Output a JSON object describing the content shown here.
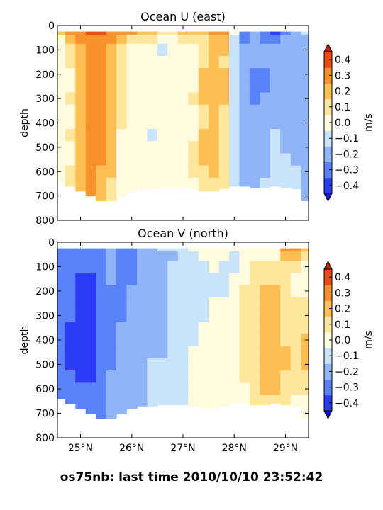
{
  "suptitle": "os75nb: last time 2010/10/10 23:52:42",
  "chart_data": [
    {
      "type": "heatmap",
      "title": "Ocean U (east)",
      "xlabel": "",
      "ylabel": "depth",
      "colorbar_label": "m/s",
      "ylim": [
        800,
        0
      ],
      "xlim": [
        24.55,
        29.45
      ],
      "yticks": [
        0,
        100,
        200,
        300,
        400,
        500,
        600,
        700,
        800
      ],
      "xticks": [
        25,
        26,
        27,
        28,
        29
      ],
      "xtick_labels": [],
      "colorbar_levels": [
        -0.4,
        -0.3,
        -0.2,
        -0.1,
        0.0,
        0.1,
        0.2,
        0.3,
        0.4
      ],
      "colorbar_tick_labels": [
        "−0.4",
        "−0.3",
        "−0.2",
        "−0.1",
        "0.0",
        "0.1",
        "0.2",
        "0.3",
        "0.4"
      ],
      "bin_colors": [
        "#2c3cf5",
        "#5a82f7",
        "#8fb4f8",
        "#c9e3fb",
        "#fefbde",
        "#fee69c",
        "#fdbf54",
        "#f8902c",
        "#ee4b14"
      ],
      "x": [
        24.6,
        24.8,
        25.0,
        25.2,
        25.4,
        25.6,
        25.8,
        26.0,
        26.2,
        26.4,
        26.6,
        26.8,
        27.0,
        27.2,
        27.4,
        27.6,
        27.8,
        28.0,
        28.2,
        28.4,
        28.6,
        28.8,
        29.0,
        29.2,
        29.4
      ],
      "depth_bins": [
        25,
        50,
        100,
        150,
        200,
        250,
        300,
        350,
        400,
        450,
        500,
        550,
        600,
        650,
        700
      ],
      "max_depth": [
        640,
        660,
        680,
        700,
        720,
        720,
        700,
        680,
        670,
        670,
        665,
        665,
        665,
        670,
        680,
        680,
        670,
        660,
        660,
        665,
        665,
        660,
        665,
        670,
        720
      ],
      "values": [
        [
          0.2,
          0.05,
          0.0,
          0.0,
          0.0,
          0.0,
          0.0,
          0.0,
          0.0,
          0.0,
          0.0,
          0.0,
          0.0,
          0.0,
          0.0
        ],
        [
          0.3,
          0.2,
          0.1,
          0.1,
          0.05,
          0.05,
          0.1,
          0.05,
          0.05,
          0.1,
          0.05,
          0.05,
          0.1,
          0.1,
          0.1
        ],
        [
          0.35,
          0.3,
          0.2,
          0.2,
          0.2,
          0.2,
          0.2,
          0.2,
          0.2,
          0.2,
          0.2,
          0.25,
          0.25,
          0.25,
          0.2
        ],
        [
          0.4,
          0.35,
          0.3,
          0.3,
          0.3,
          0.3,
          0.3,
          0.3,
          0.3,
          0.3,
          0.3,
          0.3,
          0.3,
          0.3,
          0.3
        ],
        [
          0.4,
          0.35,
          0.3,
          0.3,
          0.3,
          0.3,
          0.3,
          0.3,
          0.3,
          0.3,
          0.3,
          0.3,
          0.25,
          0.25,
          0.2
        ],
        [
          0.35,
          0.3,
          0.25,
          0.25,
          0.2,
          0.25,
          0.25,
          0.2,
          0.2,
          0.2,
          0.2,
          0.2,
          0.2,
          0.15,
          0.1
        ],
        [
          0.3,
          0.2,
          0.1,
          0.1,
          0.1,
          0.1,
          0.1,
          0.1,
          0.1,
          0.05,
          0.05,
          0.05,
          0.05,
          0.05,
          0.05
        ],
        [
          0.3,
          0.15,
          0.05,
          0.05,
          0.05,
          0.0,
          0.0,
          0.05,
          0.0,
          0.0,
          0.0,
          0.05,
          0.0,
          0.0,
          0.0
        ],
        [
          0.2,
          0.1,
          0.05,
          0.0,
          0.0,
          0.0,
          0.05,
          0.0,
          0.0,
          0.0,
          0.0,
          0.0,
          0.05,
          0.0,
          0.0
        ],
        [
          0.2,
          0.1,
          0.0,
          0.0,
          0.05,
          0.0,
          0.0,
          0.0,
          0.0,
          -0.05,
          0.0,
          0.0,
          0.0,
          0.0,
          0.0
        ],
        [
          0.1,
          0.05,
          -0.05,
          0.0,
          0.0,
          0.05,
          0.0,
          0.0,
          0.0,
          0.0,
          0.0,
          0.0,
          0.0,
          0.0,
          0.0
        ],
        [
          0.1,
          0.05,
          0.0,
          0.0,
          0.0,
          0.0,
          0.05,
          0.0,
          0.0,
          0.0,
          0.0,
          0.0,
          0.0,
          0.0,
          0.0
        ],
        [
          0.2,
          0.1,
          0.05,
          0.0,
          0.0,
          0.0,
          0.0,
          0.0,
          0.0,
          0.0,
          0.05,
          0.0,
          0.0,
          0.0,
          0.0
        ],
        [
          0.2,
          0.1,
          0.05,
          0.05,
          0.0,
          0.05,
          0.1,
          0.05,
          0.05,
          0.05,
          0.1,
          0.1,
          0.1,
          0.05,
          0.05
        ],
        [
          0.2,
          0.15,
          0.1,
          0.15,
          0.2,
          0.2,
          0.2,
          0.15,
          0.15,
          0.2,
          0.2,
          0.2,
          0.15,
          0.1,
          0.1
        ],
        [
          0.3,
          0.25,
          0.2,
          0.2,
          0.25,
          0.25,
          0.25,
          0.2,
          0.2,
          0.2,
          0.25,
          0.2,
          0.2,
          0.15,
          0.1
        ],
        [
          0.3,
          0.2,
          0.2,
          0.15,
          0.2,
          0.2,
          0.2,
          0.15,
          0.15,
          0.1,
          0.1,
          0.15,
          0.1,
          0.1,
          0.05
        ],
        [
          0.0,
          -0.05,
          -0.1,
          -0.1,
          -0.1,
          -0.1,
          -0.05,
          -0.05,
          -0.05,
          -0.05,
          -0.05,
          -0.05,
          -0.05,
          -0.05,
          -0.05
        ],
        [
          -0.3,
          -0.3,
          -0.2,
          -0.2,
          -0.2,
          -0.2,
          -0.2,
          -0.2,
          -0.2,
          -0.2,
          -0.15,
          -0.15,
          -0.15,
          -0.15,
          -0.15
        ],
        [
          -0.2,
          -0.2,
          -0.2,
          -0.2,
          -0.25,
          -0.25,
          -0.25,
          -0.2,
          -0.2,
          -0.2,
          -0.2,
          -0.2,
          -0.2,
          -0.15,
          -0.15
        ],
        [
          -0.3,
          -0.25,
          -0.2,
          -0.2,
          -0.25,
          -0.25,
          -0.2,
          -0.2,
          -0.2,
          -0.2,
          -0.15,
          -0.15,
          -0.15,
          -0.1,
          -0.1
        ],
        [
          -0.4,
          -0.3,
          -0.2,
          -0.2,
          -0.2,
          -0.15,
          -0.15,
          -0.15,
          -0.15,
          -0.1,
          -0.1,
          -0.1,
          -0.1,
          -0.1,
          -0.1
        ],
        [
          -0.3,
          -0.2,
          -0.15,
          -0.15,
          -0.15,
          -0.15,
          -0.15,
          -0.15,
          -0.15,
          -0.15,
          -0.15,
          -0.1,
          -0.1,
          -0.1,
          -0.1
        ],
        [
          -0.2,
          -0.2,
          -0.15,
          -0.15,
          -0.15,
          -0.15,
          -0.15,
          -0.15,
          -0.15,
          -0.15,
          -0.15,
          -0.15,
          -0.1,
          -0.1,
          -0.15
        ],
        [
          -0.1,
          -0.15,
          -0.15,
          -0.15,
          -0.15,
          -0.15,
          -0.15,
          -0.15,
          -0.15,
          -0.15,
          -0.15,
          -0.15,
          -0.15,
          -0.15,
          -0.15
        ]
      ]
    },
    {
      "type": "heatmap",
      "title": "Ocean V (north)",
      "xlabel": "",
      "ylabel": "depth",
      "colorbar_label": "m/s",
      "ylim": [
        800,
        0
      ],
      "xlim": [
        24.55,
        29.45
      ],
      "yticks": [
        0,
        100,
        200,
        300,
        400,
        500,
        600,
        700,
        800
      ],
      "xticks": [
        25,
        26,
        27,
        28,
        29
      ],
      "xtick_labels": [
        "25°N",
        "26°N",
        "27°N",
        "28°N",
        "29°N"
      ],
      "colorbar_levels": [
        -0.4,
        -0.3,
        -0.2,
        -0.1,
        0.0,
        0.1,
        0.2,
        0.3,
        0.4
      ],
      "colorbar_tick_labels": [
        "−0.4",
        "−0.3",
        "−0.2",
        "−0.1",
        "0.0",
        "0.1",
        "0.2",
        "0.3",
        "0.4"
      ],
      "bin_colors": [
        "#2c3cf5",
        "#5a82f7",
        "#8fb4f8",
        "#c9e3fb",
        "#fefbde",
        "#fee69c",
        "#fdbf54",
        "#f8902c",
        "#ee4b14"
      ],
      "x": [
        24.6,
        24.8,
        25.0,
        25.2,
        25.4,
        25.6,
        25.8,
        26.0,
        26.2,
        26.4,
        26.6,
        26.8,
        27.0,
        27.2,
        27.4,
        27.6,
        27.8,
        28.0,
        28.2,
        28.4,
        28.6,
        28.8,
        29.0,
        29.2,
        29.4
      ],
      "depth_bins": [
        25,
        50,
        100,
        150,
        200,
        250,
        300,
        350,
        400,
        450,
        500,
        550,
        600,
        650,
        700
      ],
      "max_depth": [
        640,
        660,
        680,
        700,
        720,
        720,
        700,
        680,
        670,
        670,
        665,
        665,
        665,
        670,
        680,
        680,
        670,
        660,
        660,
        665,
        665,
        660,
        665,
        670,
        720
      ],
      "values": [
        [
          -0.25,
          -0.25,
          -0.25,
          -0.25,
          -0.25,
          -0.25,
          -0.25,
          -0.25,
          -0.25,
          -0.25,
          -0.3,
          -0.3,
          -0.3,
          -0.25,
          -0.25
        ],
        [
          -0.25,
          -0.3,
          -0.3,
          -0.3,
          -0.3,
          -0.3,
          -0.3,
          -0.35,
          -0.35,
          -0.35,
          -0.35,
          -0.3,
          -0.3,
          -0.3,
          -0.3
        ],
        [
          -0.3,
          -0.3,
          -0.3,
          -0.35,
          -0.35,
          -0.35,
          -0.4,
          -0.45,
          -0.45,
          -0.45,
          -0.4,
          -0.35,
          -0.3,
          -0.3,
          -0.3
        ],
        [
          -0.3,
          -0.3,
          -0.3,
          -0.35,
          -0.35,
          -0.35,
          -0.4,
          -0.45,
          -0.45,
          -0.4,
          -0.35,
          -0.35,
          -0.3,
          -0.3,
          -0.3
        ],
        [
          -0.25,
          -0.25,
          -0.25,
          -0.3,
          -0.3,
          -0.3,
          -0.3,
          -0.3,
          -0.3,
          -0.3,
          -0.3,
          -0.3,
          -0.25,
          -0.25,
          -0.25
        ],
        [
          -0.2,
          -0.2,
          -0.2,
          -0.2,
          -0.25,
          -0.25,
          -0.25,
          -0.25,
          -0.25,
          -0.25,
          -0.25,
          -0.2,
          -0.2,
          -0.2,
          -0.2
        ],
        [
          -0.25,
          -0.25,
          -0.3,
          -0.25,
          -0.25,
          -0.25,
          -0.25,
          -0.2,
          -0.2,
          -0.2,
          -0.2,
          -0.2,
          -0.2,
          -0.2,
          -0.2
        ],
        [
          -0.25,
          -0.3,
          -0.25,
          -0.25,
          -0.2,
          -0.2,
          -0.2,
          -0.2,
          -0.2,
          -0.2,
          -0.15,
          -0.15,
          -0.15,
          -0.15,
          -0.15
        ],
        [
          -0.2,
          -0.2,
          -0.2,
          -0.15,
          -0.15,
          -0.15,
          -0.15,
          -0.15,
          -0.15,
          -0.15,
          -0.15,
          -0.15,
          -0.15,
          -0.15,
          -0.15
        ],
        [
          -0.15,
          -0.2,
          -0.2,
          -0.2,
          -0.15,
          -0.15,
          -0.15,
          -0.15,
          -0.15,
          -0.15,
          -0.1,
          -0.1,
          -0.1,
          -0.1,
          -0.1
        ],
        [
          -0.1,
          -0.15,
          -0.15,
          -0.15,
          -0.15,
          -0.15,
          -0.15,
          -0.15,
          -0.15,
          -0.15,
          -0.1,
          -0.1,
          -0.1,
          -0.1,
          -0.1
        ],
        [
          -0.1,
          -0.15,
          -0.1,
          -0.1,
          -0.1,
          -0.1,
          -0.1,
          -0.1,
          -0.1,
          -0.1,
          -0.05,
          -0.05,
          -0.05,
          -0.05,
          -0.05
        ],
        [
          -0.05,
          -0.1,
          -0.1,
          -0.05,
          -0.05,
          -0.05,
          -0.05,
          -0.05,
          -0.05,
          -0.05,
          -0.05,
          -0.05,
          -0.05,
          -0.05,
          0.0
        ],
        [
          0.0,
          -0.05,
          -0.05,
          -0.05,
          -0.05,
          -0.05,
          -0.05,
          -0.05,
          -0.05,
          0.0,
          0.0,
          0.0,
          0.0,
          0.0,
          0.0
        ],
        [
          0.0,
          0.0,
          -0.05,
          -0.05,
          -0.05,
          -0.05,
          -0.05,
          0.0,
          0.0,
          0.0,
          0.05,
          0.05,
          0.0,
          0.0,
          0.0
        ],
        [
          0.05,
          0.05,
          0.0,
          -0.05,
          -0.05,
          0.0,
          0.0,
          0.0,
          0.0,
          0.0,
          0.0,
          0.05,
          0.05,
          0.05,
          0.05
        ],
        [
          0.0,
          0.0,
          -0.05,
          -0.05,
          -0.05,
          0.0,
          0.0,
          0.05,
          0.0,
          0.0,
          0.05,
          0.05,
          0.05,
          0.05,
          0.05
        ],
        [
          0.0,
          -0.05,
          -0.05,
          0.0,
          0.0,
          0.0,
          0.05,
          0.05,
          0.05,
          0.05,
          0.05,
          0.05,
          0.05,
          0.05,
          0.0
        ],
        [
          0.05,
          0.0,
          0.0,
          0.05,
          0.1,
          0.1,
          0.1,
          0.1,
          0.1,
          0.1,
          0.1,
          0.1,
          0.05,
          0.05,
          0.05
        ],
        [
          0.05,
          0.05,
          0.1,
          0.15,
          0.15,
          0.15,
          0.15,
          0.15,
          0.15,
          0.15,
          0.15,
          0.15,
          0.15,
          0.1,
          0.05
        ],
        [
          0.05,
          0.05,
          0.1,
          0.15,
          0.2,
          0.2,
          0.2,
          0.2,
          0.25,
          0.25,
          0.25,
          0.25,
          0.2,
          0.15,
          0.1
        ],
        [
          0.0,
          0.05,
          0.1,
          0.15,
          0.2,
          0.2,
          0.2,
          0.25,
          0.25,
          0.25,
          0.25,
          0.2,
          0.2,
          0.15,
          0.1
        ],
        [
          0.3,
          0.2,
          0.1,
          0.1,
          0.1,
          0.15,
          0.15,
          0.15,
          0.15,
          0.2,
          0.2,
          0.15,
          0.1,
          0.1,
          0.05
        ],
        [
          0.35,
          0.25,
          0.1,
          0.05,
          0.05,
          0.1,
          0.1,
          0.1,
          0.15,
          0.15,
          0.1,
          0.1,
          0.1,
          0.05,
          0.05
        ],
        [
          0.2,
          0.15,
          0.05,
          0.05,
          0.05,
          0.1,
          0.1,
          0.15,
          0.2,
          0.2,
          0.2,
          0.15,
          0.1,
          0.05,
          0.05
        ]
      ]
    }
  ]
}
